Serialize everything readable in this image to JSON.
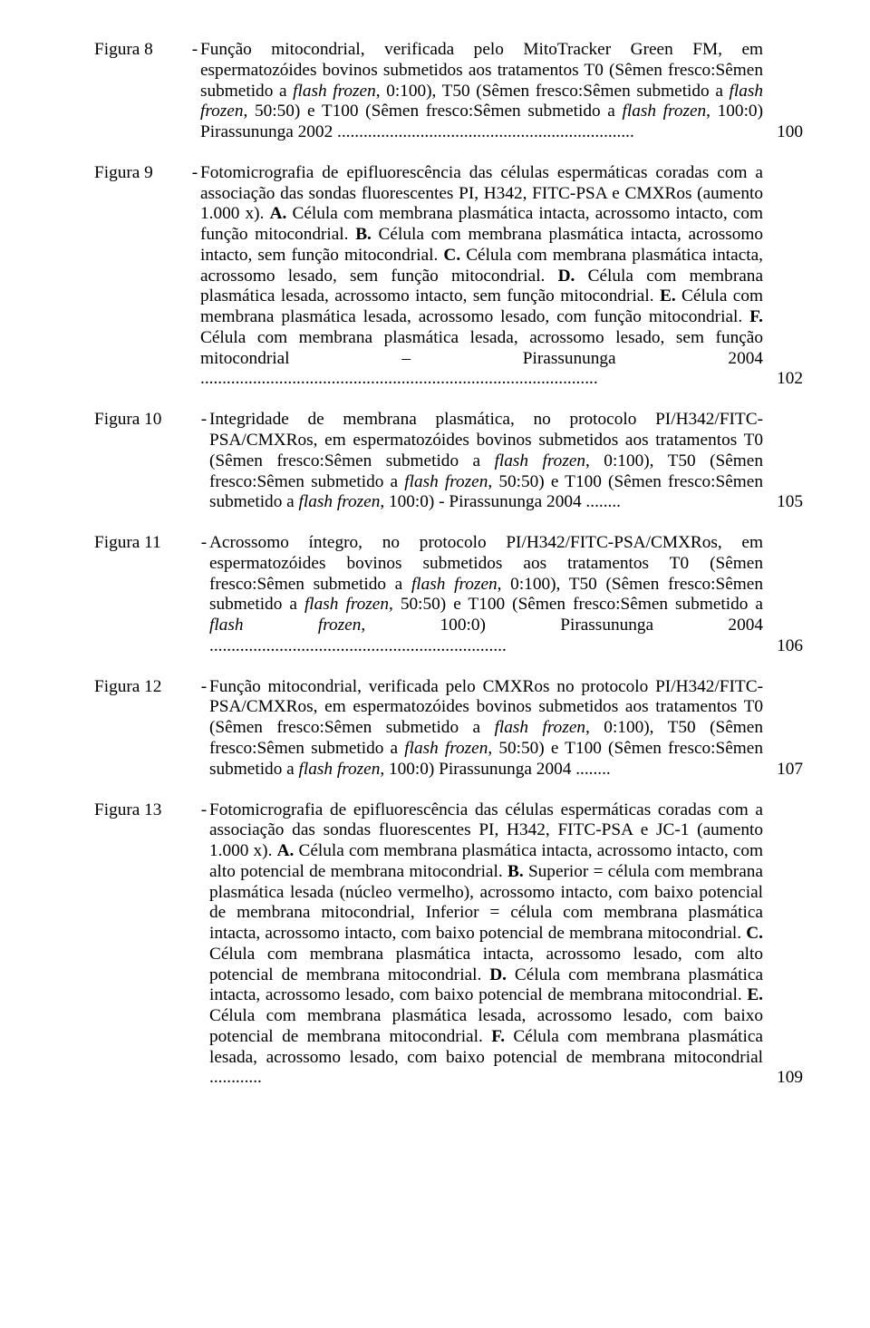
{
  "entries": [
    {
      "label": "Figura 8",
      "wide": false,
      "page": "100",
      "segments": [
        {
          "t": "Função mitocondrial, verificada pelo MitoTracker Green FM, em espermatozóides bovinos submetidos aos tratamentos T0 (Sêmen fresco:Sêmen submetido a "
        },
        {
          "t": "flash frozen",
          "i": true
        },
        {
          "t": ", 0:100), T50 (Sêmen fresco:Sêmen submetido a "
        },
        {
          "t": "flash frozen",
          "i": true
        },
        {
          "t": ", 50:50) e T100 (Sêmen fresco:Sêmen submetido a "
        },
        {
          "t": "flash frozen",
          "i": true
        },
        {
          "t": ", 100:0) Pirassununga 2002 ...................................................................."
        }
      ]
    },
    {
      "label": "Figura 9",
      "wide": false,
      "page": "102",
      "segments": [
        {
          "t": "Fotomicrografia de epifluorescência das células espermáticas coradas com a associação das sondas fluorescentes PI, H342, FITC-PSA e CMXRos (aumento 1.000 x). "
        },
        {
          "t": "A.",
          "b": true
        },
        {
          "t": " Célula com membrana plasmática intacta, acrossomo intacto, com função mitocondrial. "
        },
        {
          "t": "B.",
          "b": true
        },
        {
          "t": " Célula com membrana plasmática intacta, acrossomo intacto, sem função mitocondrial. "
        },
        {
          "t": "C.",
          "b": true
        },
        {
          "t": " Célula com membrana plasmática intacta, acrossomo lesado, sem função mitocondrial. "
        },
        {
          "t": "D.",
          "b": true
        },
        {
          "t": " Célula com membrana plasmática lesada, acrossomo intacto, sem função mitocondrial. "
        },
        {
          "t": "E.",
          "b": true
        },
        {
          "t": " Célula com membrana plasmática lesada, acrossomo lesado, com função mitocondrial. "
        },
        {
          "t": "F.",
          "b": true
        },
        {
          "t": " Célula com membrana plasmática lesada, acrossomo lesado, sem função mitocondrial – Pirassununga 2004 ..........................................................................................."
        }
      ]
    },
    {
      "label": "Figura 10",
      "wide": true,
      "page": "105",
      "segments": [
        {
          "t": "Integridade de membrana plasmática, no protocolo PI/H342/FITC-PSA/CMXRos, em espermatozóides bovinos submetidos aos tratamentos T0 (Sêmen fresco:Sêmen submetido a "
        },
        {
          "t": "flash frozen",
          "i": true
        },
        {
          "t": ", 0:100), T50 (Sêmen fresco:Sêmen submetido a "
        },
        {
          "t": "flash frozen",
          "i": true
        },
        {
          "t": ", 50:50) e T100 (Sêmen fresco:Sêmen submetido a "
        },
        {
          "t": "flash frozen",
          "i": true
        },
        {
          "t": ", 100:0) - Pirassununga 2004 ........"
        }
      ]
    },
    {
      "label": "Figura 11",
      "wide": true,
      "page": "106",
      "segments": [
        {
          "t": "Acrossomo íntegro, no protocolo PI/H342/FITC-PSA/CMXRos, em espermatozóides bovinos submetidos aos tratamentos T0 (Sêmen fresco:Sêmen submetido a "
        },
        {
          "t": "flash frozen",
          "i": true
        },
        {
          "t": ", 0:100), T50 (Sêmen fresco:Sêmen submetido a "
        },
        {
          "t": "flash frozen",
          "i": true
        },
        {
          "t": ", 50:50) e T100 (Sêmen fresco:Sêmen submetido a "
        },
        {
          "t": "flash frozen",
          "i": true
        },
        {
          "t": ", 100:0) Pirassununga 2004 ...................................................................."
        }
      ]
    },
    {
      "label": "Figura 12",
      "wide": true,
      "page": "107",
      "segments": [
        {
          "t": "Função mitocondrial, verificada pelo CMXRos no protocolo PI/H342/FITC-PSA/CMXRos, em espermatozóides bovinos submetidos aos tratamentos T0 (Sêmen fresco:Sêmen submetido a "
        },
        {
          "t": "flash frozen",
          "i": true
        },
        {
          "t": ", 0:100), T50 (Sêmen fresco:Sêmen submetido a "
        },
        {
          "t": "flash frozen",
          "i": true
        },
        {
          "t": ", 50:50) e T100 (Sêmen fresco:Sêmen submetido a "
        },
        {
          "t": "flash frozen",
          "i": true
        },
        {
          "t": ", 100:0) Pirassununga 2004 ........"
        }
      ]
    },
    {
      "label": "Figura 13",
      "wide": true,
      "page": "109",
      "segments": [
        {
          "t": "Fotomicrografia de epifluorescência das células espermáticas coradas com a associação das sondas fluorescentes PI, H342, FITC-PSA e JC-1 (aumento 1.000 x). "
        },
        {
          "t": "A.",
          "b": true
        },
        {
          "t": " Célula com membrana plasmática intacta, acrossomo intacto, com alto potencial de membrana mitocondrial. "
        },
        {
          "t": "B.",
          "b": true
        },
        {
          "t": " Superior = célula com membrana plasmática lesada (núcleo vermelho), acrossomo intacto, com baixo potencial de membrana mitocondrial, Inferior = célula com membrana plasmática intacta, acrossomo intacto, com baixo potencial de membrana mitocondrial. "
        },
        {
          "t": "C.",
          "b": true
        },
        {
          "t": " Célula com membrana plasmática intacta, acrossomo lesado, com alto potencial de membrana mitocondrial. "
        },
        {
          "t": "D.",
          "b": true
        },
        {
          "t": " Célula com membrana plasmática intacta, acrossomo lesado, com baixo potencial de membrana mitocondrial. "
        },
        {
          "t": "E.",
          "b": true
        },
        {
          "t": " Célula com membrana plasmática lesada, acrossomo lesado, com baixo potencial de membrana mitocondrial. "
        },
        {
          "t": "F.",
          "b": true
        },
        {
          "t": " Célula com membrana plasmática lesada, acrossomo lesado, com baixo potencial de membrana mitocondrial ............"
        }
      ]
    }
  ]
}
